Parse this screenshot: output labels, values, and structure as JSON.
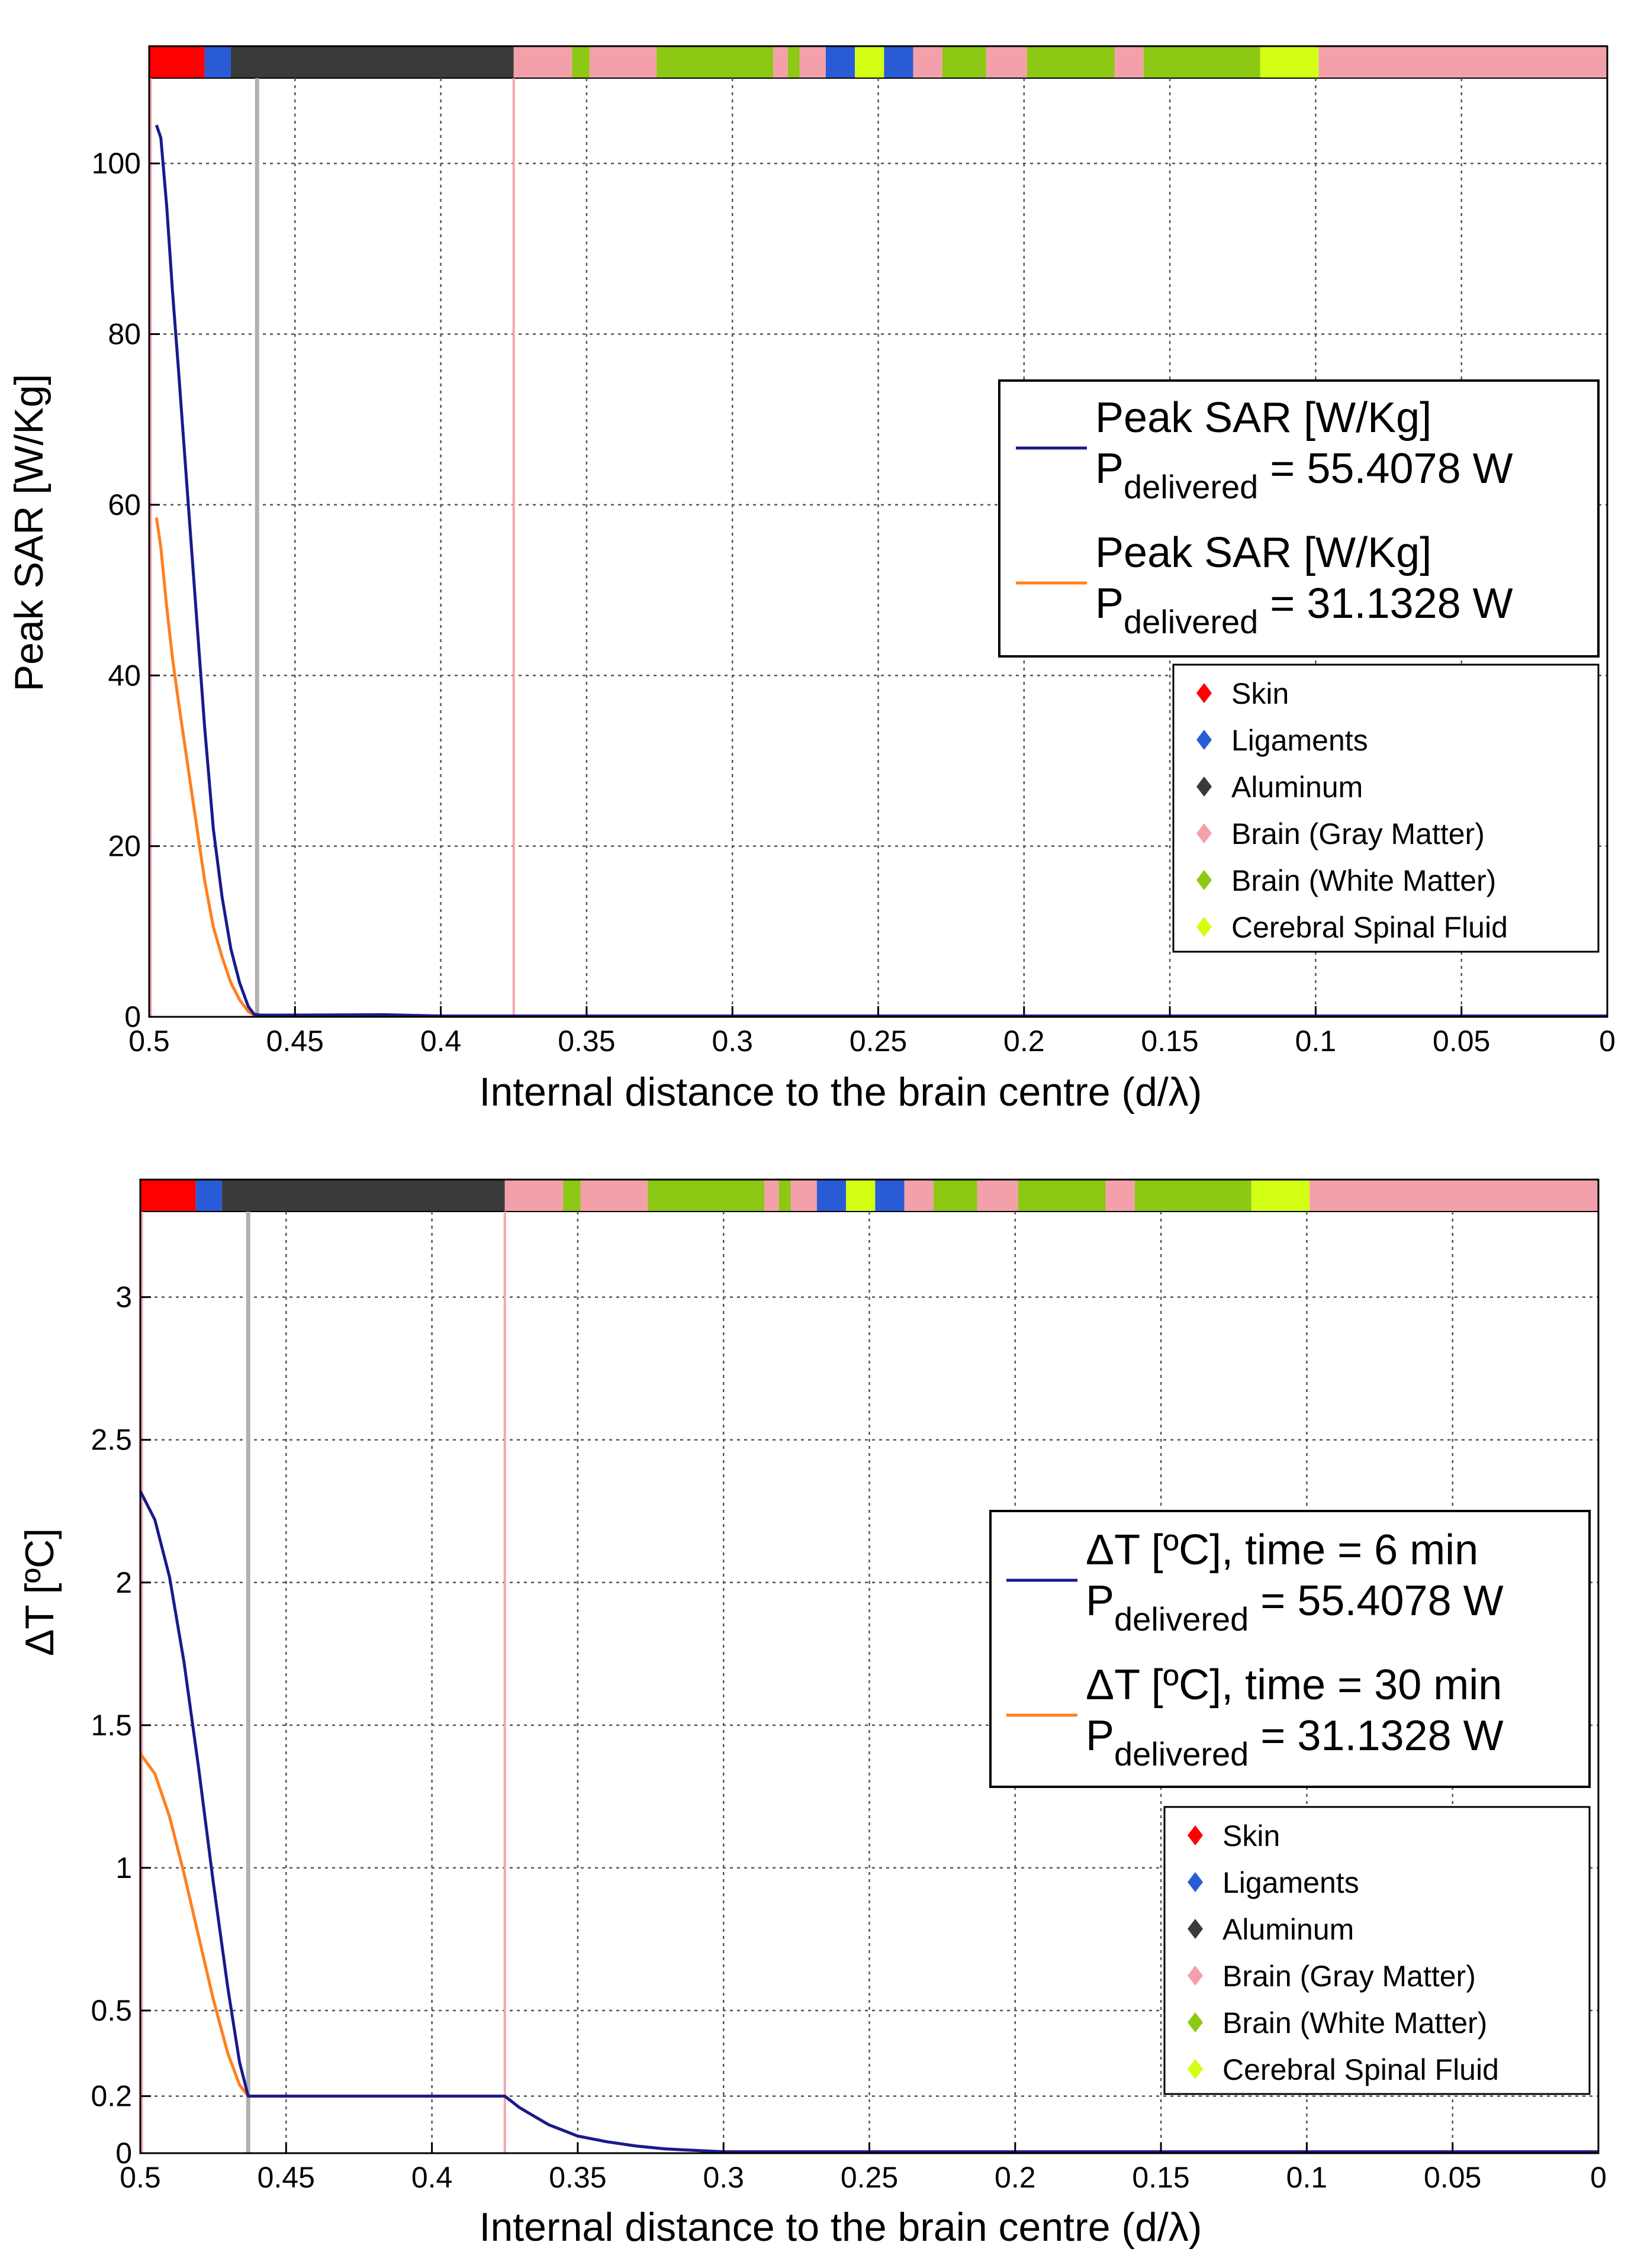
{
  "chart_data": [
    {
      "type": "line",
      "id": "sar",
      "xlabel": "Internal distance to the brain centre (d/λ)",
      "ylabel": "Peak SAR [W/Kg]",
      "xlim": [
        0.5,
        0
      ],
      "ylim": [
        0,
        110
      ],
      "xticks": [
        0.5,
        0.45,
        0.4,
        0.35,
        0.3,
        0.25,
        0.2,
        0.15,
        0.1,
        0.05,
        0
      ],
      "xtick_labels": [
        "0.5",
        "0.45",
        "0.4",
        "0.35",
        "0.3",
        "0.25",
        "0.2",
        "0.15",
        "0.1",
        "0.05",
        "0"
      ],
      "yticks": [
        0,
        20,
        40,
        60,
        80,
        100
      ],
      "ytick_labels": [
        "0",
        "20",
        "40",
        "60",
        "80",
        "100"
      ],
      "grid": true,
      "legend_position": "right",
      "vlines": [
        {
          "x": 0.463,
          "color": "#b0b0b0"
        },
        {
          "x": 0.375,
          "color": "#f4a6ae"
        }
      ],
      "series": [
        {
          "name": "Peak SAR [W/Kg]",
          "sub_prefix": "P",
          "sub": "delivered",
          "sub_suffix": " = 55.4078 W",
          "color": "#1a1a8c",
          "x": [
            0.4975,
            0.496,
            0.494,
            0.492,
            0.49,
            0.487,
            0.484,
            0.481,
            0.478,
            0.475,
            0.472,
            0.469,
            0.466,
            0.464,
            0.462,
            0.455,
            0.42,
            0.4,
            0.35,
            0.3,
            0.25,
            0.2,
            0.15,
            0.1,
            0.05,
            0.0
          ],
          "y": [
            104.5,
            103,
            95,
            85,
            76,
            62,
            48,
            34,
            22,
            14,
            8,
            4,
            1.2,
            0.3,
            0.2,
            0.2,
            0.25,
            0.1,
            0.1,
            0.1,
            0.1,
            0.1,
            0.1,
            0.1,
            0.1,
            0.1
          ]
        },
        {
          "name": "Peak SAR [W/Kg]",
          "sub_prefix": "P",
          "sub": "delivered",
          "sub_suffix": " = 31.1328 W",
          "color": "#ff7f1f",
          "x": [
            0.4975,
            0.496,
            0.494,
            0.492,
            0.49,
            0.487,
            0.484,
            0.481,
            0.478,
            0.475,
            0.472,
            0.469,
            0.466,
            0.464,
            0.462,
            0.455,
            0.42,
            0.4,
            0.35,
            0.3,
            0.25,
            0.2,
            0.15,
            0.1,
            0.05,
            0.0
          ],
          "y": [
            58.5,
            55,
            48,
            42,
            37,
            30,
            23,
            16,
            10.5,
            7,
            4,
            2,
            0.6,
            0.2,
            0.1,
            0.1,
            0.15,
            0.05,
            0.05,
            0.05,
            0.05,
            0.05,
            0.05,
            0.05,
            0.05,
            0.05
          ]
        }
      ]
    },
    {
      "type": "line",
      "id": "dt",
      "xlabel": "Internal distance to the brain centre (d/λ)",
      "ylabel": "ΔT [ºC]",
      "xlim": [
        0.5,
        0
      ],
      "ylim": [
        0,
        3.3
      ],
      "xticks": [
        0.5,
        0.45,
        0.4,
        0.35,
        0.3,
        0.25,
        0.2,
        0.15,
        0.1,
        0.05,
        0
      ],
      "xtick_labels": [
        "0.5",
        "0.45",
        "0.4",
        "0.35",
        "0.3",
        "0.25",
        "0.2",
        "0.15",
        "0.1",
        "0.05",
        "0"
      ],
      "yticks": [
        0,
        0.2,
        0.5,
        1,
        1.5,
        2,
        2.5,
        3
      ],
      "ytick_labels": [
        "0",
        "0.2",
        "0.5",
        "1",
        "1.5",
        "2",
        "2.5",
        "3"
      ],
      "grid": true,
      "legend_position": "right",
      "vlines": [
        {
          "x": 0.463,
          "color": "#b0b0b0"
        },
        {
          "x": 0.375,
          "color": "#f4a6ae"
        }
      ],
      "series": [
        {
          "name": "ΔT [ºC], time = 6 min",
          "sub_prefix": "P",
          "sub": "delivered",
          "sub_suffix": " = 55.4078 W",
          "color": "#1a1a8c",
          "x": [
            0.5,
            0.495,
            0.49,
            0.485,
            0.48,
            0.475,
            0.47,
            0.466,
            0.463,
            0.45,
            0.42,
            0.4,
            0.38,
            0.375,
            0.37,
            0.36,
            0.35,
            0.34,
            0.33,
            0.32,
            0.31,
            0.3,
            0.28,
            0.25,
            0.2,
            0.15,
            0.1,
            0.05,
            0.0
          ],
          "y": [
            2.32,
            2.22,
            2.02,
            1.72,
            1.35,
            0.95,
            0.58,
            0.32,
            0.2,
            0.2,
            0.2,
            0.2,
            0.2,
            0.2,
            0.16,
            0.1,
            0.06,
            0.04,
            0.025,
            0.015,
            0.01,
            0.005,
            0.005,
            0.005,
            0.005,
            0.005,
            0.005,
            0.005,
            0.005
          ]
        },
        {
          "name": "ΔT [ºC], time = 30 min",
          "sub_prefix": "P",
          "sub": "delivered",
          "sub_suffix": " = 31.1328 W",
          "color": "#ff7f1f",
          "x": [
            0.5,
            0.495,
            0.49,
            0.485,
            0.48,
            0.475,
            0.47,
            0.466,
            0.463,
            0.45,
            0.42,
            0.4,
            0.38,
            0.375,
            0.37,
            0.36,
            0.35,
            0.34,
            0.33,
            0.32,
            0.31,
            0.3,
            0.28,
            0.25,
            0.2,
            0.15,
            0.1,
            0.05,
            0.0
          ],
          "y": [
            1.4,
            1.33,
            1.18,
            0.98,
            0.76,
            0.54,
            0.35,
            0.24,
            0.2,
            0.2,
            0.2,
            0.2,
            0.2,
            0.2,
            0.16,
            0.1,
            0.06,
            0.04,
            0.025,
            0.015,
            0.01,
            0.005,
            0.005,
            0.005,
            0.005,
            0.005,
            0.005,
            0.005,
            0.005
          ]
        }
      ]
    }
  ],
  "tissue_legend": [
    {
      "label": "Skin",
      "color": "#ff0000"
    },
    {
      "label": "Ligaments",
      "color": "#2a5bd7"
    },
    {
      "label": "Aluminum",
      "color": "#3a3a3a"
    },
    {
      "label": "Brain (Gray Matter)",
      "color": "#f4a0aa"
    },
    {
      "label": "Brain (White Matter)",
      "color": "#8cc814"
    },
    {
      "label": "Cerebral Spinal Fluid",
      "color": "#d2ff14"
    }
  ],
  "tissue_bar": [
    {
      "from": 0.5,
      "to": 0.481,
      "tissue": "Skin",
      "color": "#ff0000"
    },
    {
      "from": 0.481,
      "to": 0.472,
      "tissue": "Ligaments",
      "color": "#2a5bd7"
    },
    {
      "from": 0.472,
      "to": 0.375,
      "tissue": "Aluminum",
      "color": "#3a3a3a"
    },
    {
      "from": 0.375,
      "to": 0.355,
      "tissue": "Brain (Gray Matter)",
      "color": "#f4a0aa"
    },
    {
      "from": 0.355,
      "to": 0.349,
      "tissue": "Brain (White Matter)",
      "color": "#8cc814"
    },
    {
      "from": 0.349,
      "to": 0.326,
      "tissue": "Brain (Gray Matter)",
      "color": "#f4a0aa"
    },
    {
      "from": 0.326,
      "to": 0.286,
      "tissue": "Brain (White Matter)",
      "color": "#8cc814"
    },
    {
      "from": 0.286,
      "to": 0.281,
      "tissue": "Brain (Gray Matter)",
      "color": "#f4a0aa"
    },
    {
      "from": 0.281,
      "to": 0.277,
      "tissue": "Brain (White Matter)",
      "color": "#8cc814"
    },
    {
      "from": 0.277,
      "to": 0.268,
      "tissue": "Brain (Gray Matter)",
      "color": "#f4a0aa"
    },
    {
      "from": 0.268,
      "to": 0.258,
      "tissue": "Ligaments",
      "color": "#2a5bd7"
    },
    {
      "from": 0.258,
      "to": 0.248,
      "tissue": "Cerebral Spinal Fluid",
      "color": "#d2ff14"
    },
    {
      "from": 0.248,
      "to": 0.238,
      "tissue": "Ligaments",
      "color": "#2a5bd7"
    },
    {
      "from": 0.238,
      "to": 0.228,
      "tissue": "Brain (Gray Matter)",
      "color": "#f4a0aa"
    },
    {
      "from": 0.228,
      "to": 0.213,
      "tissue": "Brain (White Matter)",
      "color": "#8cc814"
    },
    {
      "from": 0.213,
      "to": 0.199,
      "tissue": "Brain (Gray Matter)",
      "color": "#f4a0aa"
    },
    {
      "from": 0.199,
      "to": 0.169,
      "tissue": "Brain (White Matter)",
      "color": "#8cc814"
    },
    {
      "from": 0.169,
      "to": 0.159,
      "tissue": "Brain (Gray Matter)",
      "color": "#f4a0aa"
    },
    {
      "from": 0.159,
      "to": 0.119,
      "tissue": "Brain (White Matter)",
      "color": "#8cc814"
    },
    {
      "from": 0.119,
      "to": 0.099,
      "tissue": "Cerebral Spinal Fluid",
      "color": "#d2ff14"
    },
    {
      "from": 0.099,
      "to": 0.0,
      "tissue": "Brain (Gray Matter)",
      "color": "#f4a0aa"
    }
  ]
}
